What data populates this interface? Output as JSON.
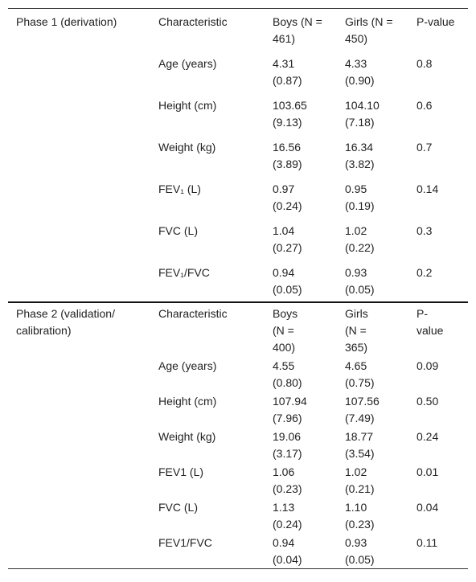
{
  "sections": [
    {
      "title": "Phase 1 (derivation)",
      "header": [
        "Characteristic",
        "Boys (N = 461)",
        "Girls (N = 450)",
        "P-value"
      ],
      "rows": [
        {
          "label": "Age (years)",
          "boys": [
            "4.31",
            "(0.87)"
          ],
          "girls": [
            "4.33",
            "(0.90)"
          ],
          "p": "0.8"
        },
        {
          "label": "Height (cm)",
          "boys": [
            "103.65",
            "(9.13)"
          ],
          "girls": [
            "104.10",
            "(7.18)"
          ],
          "p": "0.6"
        },
        {
          "label": "Weight (kg)",
          "boys": [
            "16.56",
            "(3.89)"
          ],
          "girls": [
            "16.34",
            "(3.82)"
          ],
          "p": "0.7"
        },
        {
          "label": "FEV₁ (L)",
          "boys": [
            "0.97",
            "(0.24)"
          ],
          "girls": [
            "0.95",
            "(0.19)"
          ],
          "p": "0.14"
        },
        {
          "label": "FVC (L)",
          "boys": [
            "1.04",
            "(0.27)"
          ],
          "girls": [
            "1.02",
            "(0.22)"
          ],
          "p": "0.3"
        },
        {
          "label": "FEV₁/FVC",
          "boys": [
            "0.94",
            "(0.05)"
          ],
          "girls": [
            "0.93",
            "(0.05)"
          ],
          "p": "0.2"
        }
      ]
    },
    {
      "title": "Phase 2 (validation/ calibration)",
      "header": [
        "Characteristic",
        "Boys (N = 400)",
        "Girls (N = 365)",
        "P-value"
      ],
      "rows": [
        {
          "label": "Age (years)",
          "boys": [
            "4.55",
            "(0.80)"
          ],
          "girls": [
            "4.65",
            "(0.75)"
          ],
          "p": "0.09"
        },
        {
          "label": "Height (cm)",
          "boys": [
            "107.94",
            "(7.96)"
          ],
          "girls": [
            "107.56",
            "(7.49)"
          ],
          "p": "0.50"
        },
        {
          "label": "Weight (kg)",
          "boys": [
            "19.06",
            "(3.17)"
          ],
          "girls": [
            "18.77",
            "(3.54)"
          ],
          "p": "0.24"
        },
        {
          "label": "FEV1 (L)",
          "boys": [
            "1.06",
            "(0.23)"
          ],
          "girls": [
            "1.02",
            "(0.21)"
          ],
          "p": "0.01"
        },
        {
          "label": "FVC (L)",
          "boys": [
            "1.13",
            "(0.24)"
          ],
          "girls": [
            "1.10",
            "(0.23)"
          ],
          "p": "0.04"
        },
        {
          "label": "FEV1/FVC",
          "boys": [
            "0.94",
            "(0.04)"
          ],
          "girls": [
            "0.93",
            "(0.05)"
          ],
          "p": "0.11"
        }
      ]
    }
  ]
}
